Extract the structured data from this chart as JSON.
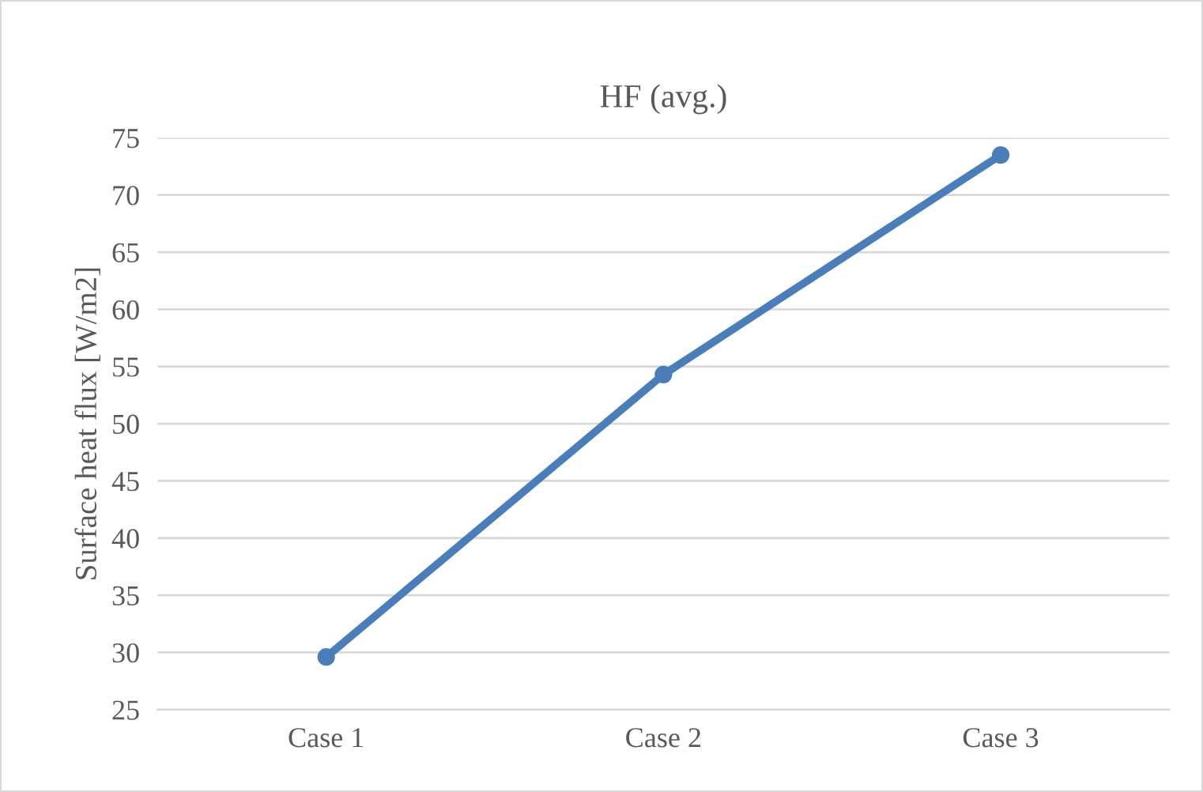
{
  "chart_data": {
    "type": "line",
    "title": "HF (avg.)",
    "ylabel": "Surface heat flux [W/m2]",
    "categories": [
      "Case 1",
      "Case 2",
      "Case 3"
    ],
    "series": [
      {
        "color": "#4a7ebb",
        "values": [
          29.6,
          54.3,
          73.5
        ]
      }
    ],
    "ylim": [
      25,
      75
    ],
    "yticks": [
      25,
      30,
      35,
      40,
      45,
      50,
      55,
      60,
      65,
      70,
      75
    ],
    "grid": "y",
    "marker": "circle",
    "line_style": "solid",
    "legend": false
  }
}
